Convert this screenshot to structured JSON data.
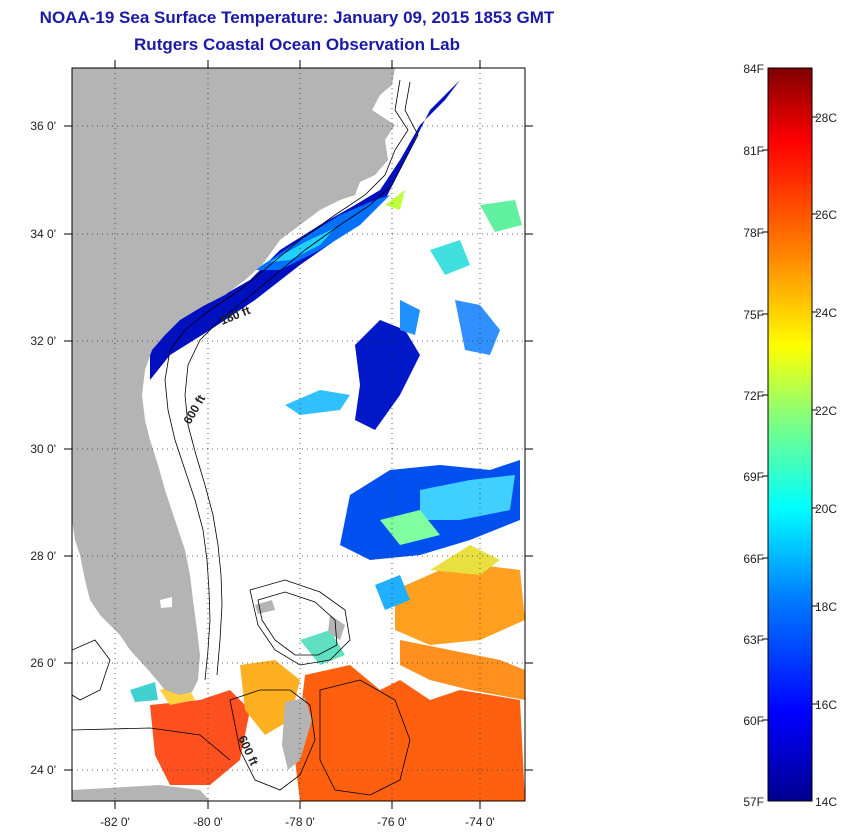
{
  "header": {
    "title": "NOAA-19 Sea Surface Temperature:  January 09, 2015 1853 GMT",
    "subtitle": "Rutgers Coastal Ocean Observation Lab"
  },
  "map": {
    "lat_range": [
      23,
      37.1
    ],
    "lon_range": [
      -83,
      -73
    ],
    "lat_ticks": [
      "36 0'",
      "34 0'",
      "32 0'",
      "30 0'",
      "28 0'",
      "26 0'",
      "24 0'"
    ],
    "lon_ticks": [
      "-82 0'",
      "-80 0'",
      "-78 0'",
      "-76 0'",
      "-74 0'"
    ],
    "contour_labels": [
      "180 ft",
      "600 ft",
      "600 ft"
    ],
    "colors": {
      "land": "#b4b4b4",
      "ocean_nodata": "#ffffff",
      "frame": "#000000"
    }
  },
  "colorbar": {
    "fahrenheit": [
      "84F",
      "81F",
      "78F",
      "75F",
      "72F",
      "69F",
      "66F",
      "63F",
      "60F",
      "57F"
    ],
    "celsius": [
      "28C",
      "26C",
      "24C",
      "22C",
      "20C",
      "18C",
      "16C",
      "14C"
    ],
    "colors": [
      "#00008f",
      "#0000ff",
      "#0080ff",
      "#00ffff",
      "#80ff80",
      "#ffff00",
      "#ff8000",
      "#ff0000",
      "#800000"
    ]
  }
}
